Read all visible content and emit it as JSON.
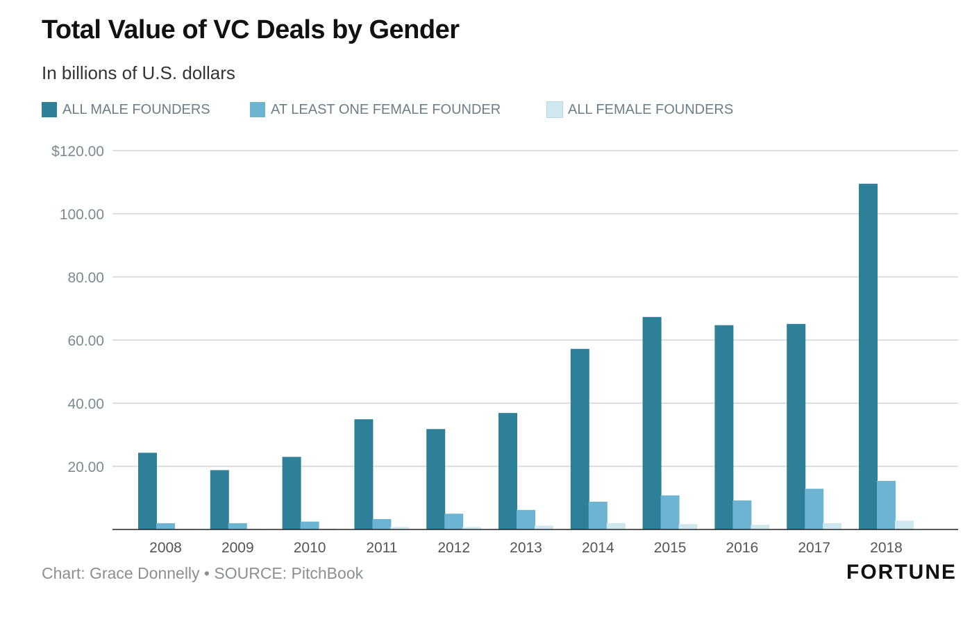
{
  "colors": {
    "male": "#2e7f98",
    "mixed": "#6cb4d2",
    "female": "#cfe8f0",
    "grid": "#c9c9c9",
    "axis": "#222222",
    "tick_text": "#7b8a92"
  },
  "footer": {
    "source": "Chart: Grace Donnelly • SOURCE: PitchBook",
    "brand": "FORTUNE"
  },
  "chart_data": {
    "type": "bar",
    "title": "Total Value of VC Deals by Gender",
    "subtitle": "In billions of U.S. dollars",
    "categories": [
      "2008",
      "2009",
      "2010",
      "2011",
      "2012",
      "2013",
      "2014",
      "2015",
      "2016",
      "2017",
      "2018"
    ],
    "series": [
      {
        "name": "ALL MALE FOUNDERS",
        "color": "#2e7f98",
        "values": [
          24.3,
          18.8,
          23.0,
          34.9,
          31.8,
          36.9,
          57.2,
          67.3,
          64.7,
          65.1,
          109.5
        ]
      },
      {
        "name": "AT LEAST ONE FEMALE FOUNDER",
        "color": "#6cb4d2",
        "values": [
          2.0,
          2.0,
          2.5,
          3.3,
          5.0,
          6.2,
          8.8,
          10.8,
          9.2,
          12.9,
          15.4
        ]
      },
      {
        "name": "ALL FEMALE FOUNDERS",
        "color": "#cfe8f0",
        "values": [
          0.2,
          0.2,
          0.3,
          0.8,
          0.8,
          1.2,
          2.0,
          1.7,
          1.5,
          2.0,
          2.8
        ]
      }
    ],
    "yticks": [
      20,
      40,
      60,
      80,
      100,
      120
    ],
    "ytick_labels": [
      "20.00",
      "40.00",
      "60.00",
      "80.00",
      "100.00",
      "$120.00"
    ],
    "ylim": [
      0,
      120
    ],
    "xlabel": "",
    "ylabel": "",
    "grid": true,
    "legend_position": "top-left"
  }
}
